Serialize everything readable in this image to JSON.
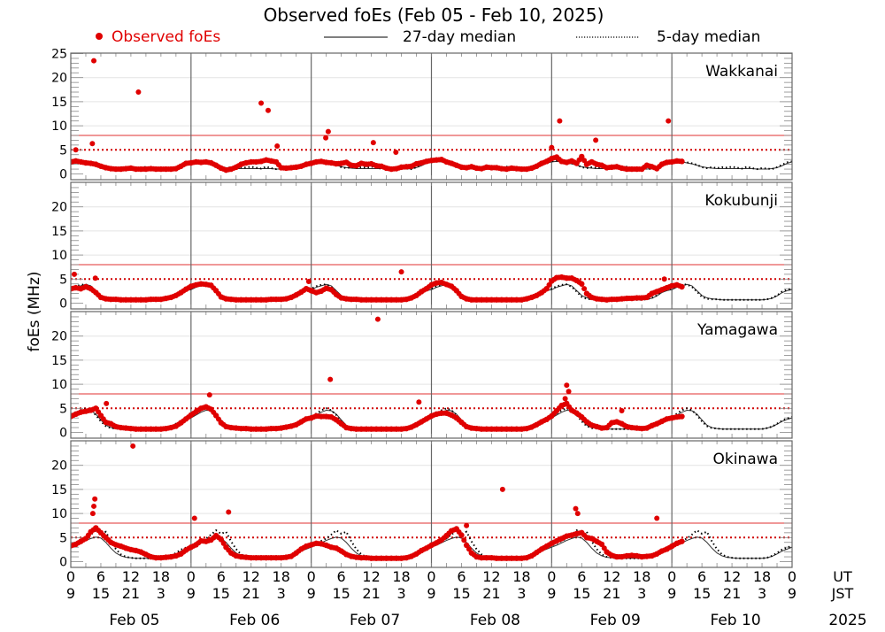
{
  "chart_data": {
    "type": "scatter",
    "title": "Observed foEs (Feb 05 - Feb 10, 2025)",
    "ylabel": "foEs (MHz)",
    "ylim": [
      0,
      25
    ],
    "yticks": [
      0,
      5,
      10,
      15,
      20,
      25
    ],
    "legend": {
      "placement": "top",
      "observed": "Observed foEs",
      "median27": "27-day median",
      "median5": "5-day median"
    },
    "reference_lines": {
      "solid_red": 8,
      "dotted_red": 5
    },
    "x_axis": {
      "ut_label": "UT",
      "jst_label": "JST",
      "ut_ticks": [
        "0",
        "6",
        "12",
        "18"
      ],
      "jst_ticks": [
        "9",
        "15",
        "21",
        "3"
      ],
      "end_ut": "0",
      "end_jst": "9",
      "days": [
        "Feb 05",
        "Feb 06",
        "Feb 07",
        "Feb 08",
        "Feb 09",
        "Feb 10"
      ],
      "year": "2025",
      "hours_per_point": 1
    },
    "colors": {
      "observed": "#e00000",
      "median27": "#333333",
      "median5": "#000000",
      "ref": "#e03030"
    },
    "stations": [
      {
        "name": "Wakkanai",
        "median27_diurnal": [
          2.5,
          2.6,
          2.5,
          2.3,
          2.1,
          1.8,
          1.5,
          1.3,
          1.2,
          1.1,
          1.1,
          1.1,
          1.1,
          1.1,
          1.1,
          1.1,
          1.1,
          1.0,
          1.0,
          1.0,
          1.1,
          1.3,
          1.7,
          2.2
        ],
        "median5_diurnal": [
          2.6,
          2.8,
          2.6,
          2.4,
          2.2,
          1.9,
          1.4,
          1.2,
          1.4,
          1.2,
          1.4,
          1.3,
          1.5,
          1.3,
          1.1,
          1.5,
          1.2,
          1.0,
          1.2,
          1.1,
          1.0,
          1.4,
          1.9,
          2.4
        ],
        "observed": [
          2.5,
          2.7,
          2.5,
          2.3,
          2.2,
          2.0,
          1.6,
          1.3,
          1.1,
          1.0,
          1.0,
          1.1,
          1.2,
          1.0,
          1.0,
          1.0,
          1.1,
          1.0,
          1.0,
          1.0,
          1.0,
          1.1,
          1.6,
          2.2,
          2.3,
          2.5,
          2.4,
          2.5,
          2.3,
          1.8,
          1.2,
          0.8,
          1.0,
          1.4,
          2.0,
          2.3,
          2.5,
          2.5,
          2.6,
          2.9,
          2.7,
          2.5,
          1.3,
          1.2,
          1.3,
          1.4,
          1.6,
          2.0,
          2.2,
          2.5,
          2.6,
          2.4,
          2.3,
          2.1,
          2.2,
          2.4,
          1.8,
          1.7,
          2.2,
          2.0,
          2.1,
          1.7,
          1.6,
          1.2,
          1.0,
          1.1,
          1.4,
          1.5,
          1.6,
          2.1,
          2.3,
          2.6,
          2.8,
          2.9,
          3.0,
          2.5,
          2.2,
          1.8,
          1.4,
          1.3,
          1.5,
          1.2,
          1.1,
          1.4,
          1.3,
          1.3,
          1.1,
          1.0,
          1.2,
          1.1,
          1.0,
          1.0,
          1.2,
          1.6,
          2.2,
          2.6,
          3.2,
          3.5,
          2.6,
          2.4,
          2.7,
          2.2,
          3.6,
          2.0,
          2.5,
          2.0,
          1.8,
          1.3,
          1.4,
          1.5,
          1.2,
          1.0,
          1.0,
          1.0,
          1.0,
          1.8,
          1.5,
          1.1,
          2.0,
          2.4,
          2.5,
          2.7,
          2.6
        ],
        "outliers": [
          [
            1,
            5.0
          ],
          [
            4.3,
            6.3
          ],
          [
            4.6,
            23.5
          ],
          [
            13.5,
            17.0
          ],
          [
            38,
            14.7
          ],
          [
            39.4,
            13.2
          ],
          [
            41.2,
            5.8
          ],
          [
            50.9,
            7.5
          ],
          [
            51.4,
            8.8
          ],
          [
            60.4,
            6.5
          ],
          [
            64.9,
            4.5
          ],
          [
            96,
            5.5
          ],
          [
            97.6,
            11.0
          ],
          [
            104.8,
            7.0
          ],
          [
            119.3,
            11.0
          ]
        ]
      },
      {
        "name": "Kokubunji",
        "median27_diurnal": [
          2.8,
          3.3,
          3.6,
          3.9,
          3.6,
          2.6,
          1.6,
          1.1,
          0.9,
          0.8,
          0.7,
          0.7,
          0.7,
          0.7,
          0.7,
          0.7,
          0.7,
          0.7,
          0.7,
          0.8,
          1.0,
          1.5,
          2.2,
          2.6
        ],
        "median5_diurnal": [
          3.0,
          3.5,
          3.8,
          3.9,
          3.4,
          2.4,
          1.3,
          0.9,
          0.8,
          0.8,
          0.7,
          0.7,
          0.7,
          0.7,
          0.7,
          0.7,
          0.7,
          0.7,
          0.7,
          0.8,
          1.1,
          1.6,
          2.4,
          2.8
        ],
        "observed": [
          3.0,
          3.2,
          3.0,
          3.4,
          3.0,
          2.2,
          1.2,
          0.9,
          0.8,
          0.8,
          0.7,
          0.7,
          0.7,
          0.7,
          0.7,
          0.7,
          0.8,
          0.8,
          0.8,
          1.0,
          1.2,
          1.6,
          2.2,
          2.9,
          3.5,
          3.8,
          4.0,
          3.9,
          3.7,
          2.6,
          1.3,
          0.9,
          0.8,
          0.7,
          0.7,
          0.7,
          0.7,
          0.7,
          0.7,
          0.7,
          0.8,
          0.8,
          0.8,
          0.9,
          1.2,
          1.7,
          2.3,
          3.0,
          2.6,
          2.2,
          2.5,
          3.1,
          2.8,
          1.8,
          1.1,
          0.9,
          0.8,
          0.8,
          0.7,
          0.7,
          0.7,
          0.7,
          0.7,
          0.7,
          0.7,
          0.7,
          0.7,
          0.8,
          1.1,
          1.6,
          2.4,
          3.0,
          3.8,
          4.2,
          4.3,
          3.9,
          3.5,
          2.6,
          1.4,
          0.9,
          0.7,
          0.7,
          0.7,
          0.7,
          0.7,
          0.7,
          0.7,
          0.7,
          0.7,
          0.7,
          0.7,
          0.9,
          1.2,
          1.6,
          2.2,
          3.0,
          4.6,
          5.3,
          5.4,
          5.2,
          5.2,
          4.7,
          4.0,
          2.0,
          1.2,
          0.9,
          0.8,
          0.7,
          0.8,
          0.8,
          0.9,
          1.0,
          1.0,
          1.1,
          1.1,
          1.2,
          2.0,
          2.4,
          2.8,
          3.2,
          3.6,
          3.8,
          3.4
        ],
        "outliers": [
          [
            0.7,
            6.0
          ],
          [
            4.9,
            5.2
          ],
          [
            47.5,
            4.5
          ],
          [
            66,
            6.5
          ],
          [
            118.5,
            5.0
          ]
        ]
      },
      {
        "name": "Yamagawa",
        "median27_diurnal": [
          3.0,
          3.6,
          4.2,
          4.6,
          4.5,
          3.8,
          2.6,
          1.5,
          1.0,
          0.8,
          0.7,
          0.7,
          0.7,
          0.7,
          0.7,
          0.7,
          0.7,
          0.7,
          0.7,
          0.9,
          1.2,
          1.7,
          2.3,
          2.7
        ],
        "median5_diurnal": [
          3.2,
          3.9,
          4.6,
          5.0,
          4.6,
          3.6,
          2.3,
          1.3,
          0.9,
          0.8,
          0.7,
          0.7,
          0.7,
          0.7,
          0.7,
          0.7,
          0.7,
          0.7,
          0.7,
          0.9,
          1.2,
          1.8,
          2.4,
          2.9
        ],
        "observed": [
          3.3,
          3.8,
          4.2,
          4.4,
          4.6,
          5.0,
          3.5,
          2.1,
          1.8,
          1.2,
          1.0,
          0.9,
          0.8,
          0.7,
          0.7,
          0.7,
          0.7,
          0.7,
          0.7,
          0.8,
          1.0,
          1.3,
          2.0,
          2.8,
          3.6,
          4.3,
          5.0,
          5.3,
          4.8,
          3.5,
          2.0,
          1.2,
          1.0,
          0.9,
          0.8,
          0.8,
          0.7,
          0.7,
          0.7,
          0.7,
          0.8,
          0.8,
          0.9,
          1.1,
          1.3,
          1.6,
          2.2,
          2.8,
          3.0,
          3.4,
          3.3,
          3.3,
          3.2,
          2.6,
          1.8,
          1.0,
          0.8,
          0.7,
          0.7,
          0.7,
          0.7,
          0.7,
          0.7,
          0.7,
          0.7,
          0.7,
          0.7,
          0.8,
          1.1,
          1.6,
          2.2,
          2.8,
          3.4,
          3.8,
          4.0,
          4.0,
          3.6,
          3.0,
          2.1,
          1.2,
          0.9,
          0.8,
          0.7,
          0.7,
          0.7,
          0.7,
          0.7,
          0.7,
          0.7,
          0.7,
          0.7,
          0.8,
          1.1,
          1.6,
          2.2,
          2.7,
          3.4,
          4.5,
          5.6,
          6.0,
          4.6,
          4.0,
          3.2,
          2.2,
          1.5,
          1.2,
          0.9,
          1.0,
          2.0,
          2.2,
          1.8,
          1.2,
          1.0,
          0.9,
          0.8,
          0.9,
          1.4,
          1.8,
          2.3,
          2.8,
          3.0,
          3.2,
          3.3
        ],
        "outliers": [
          [
            7.1,
            6.0
          ],
          [
            27.7,
            7.8
          ],
          [
            51.8,
            11.0
          ],
          [
            61.3,
            23.5
          ],
          [
            69.5,
            6.3
          ],
          [
            98.7,
            7.0
          ],
          [
            99,
            9.8
          ],
          [
            99.4,
            8.5
          ],
          [
            110,
            4.5
          ]
        ]
      },
      {
        "name": "Okinawa",
        "median27_diurnal": [
          3.0,
          3.4,
          3.9,
          4.4,
          4.8,
          5.1,
          4.9,
          4.0,
          2.8,
          1.8,
          1.2,
          0.9,
          0.8,
          0.7,
          0.7,
          0.7,
          0.7,
          0.7,
          0.7,
          0.8,
          1.1,
          1.6,
          2.2,
          2.6
        ],
        "median5_diurnal": [
          3.3,
          3.8,
          4.3,
          4.8,
          5.6,
          6.5,
          5.8,
          6.2,
          4.2,
          2.6,
          1.5,
          1.0,
          0.8,
          0.7,
          0.7,
          0.7,
          0.7,
          0.7,
          0.7,
          0.8,
          1.2,
          1.8,
          2.5,
          2.9
        ],
        "observed": [
          3.3,
          3.6,
          4.2,
          4.8,
          6.2,
          7.0,
          6.0,
          5.0,
          4.0,
          3.5,
          3.2,
          2.8,
          2.5,
          2.3,
          2.0,
          1.5,
          1.0,
          0.8,
          0.8,
          0.9,
          1.0,
          1.2,
          1.6,
          2.4,
          3.0,
          3.5,
          4.3,
          4.2,
          4.5,
          5.4,
          4.6,
          3.0,
          1.8,
          1.2,
          1.0,
          0.9,
          0.8,
          0.8,
          0.8,
          0.8,
          0.8,
          0.8,
          0.8,
          0.9,
          1.1,
          1.8,
          2.6,
          3.2,
          3.5,
          3.8,
          3.7,
          3.4,
          3.0,
          2.8,
          2.2,
          1.5,
          1.1,
          0.9,
          0.8,
          0.8,
          0.7,
          0.7,
          0.7,
          0.7,
          0.7,
          0.7,
          0.7,
          0.8,
          1.1,
          1.6,
          2.3,
          2.8,
          3.4,
          3.9,
          4.5,
          5.4,
          6.4,
          6.8,
          5.5,
          3.4,
          1.8,
          1.0,
          0.8,
          0.8,
          0.8,
          0.7,
          0.7,
          0.7,
          0.7,
          0.7,
          0.7,
          0.8,
          1.2,
          1.9,
          2.6,
          3.2,
          3.8,
          4.3,
          4.8,
          5.3,
          5.5,
          5.8,
          6.0,
          5.0,
          4.8,
          4.2,
          3.6,
          2.0,
          1.3,
          1.0,
          1.0,
          1.2,
          1.3,
          1.2,
          1.0,
          1.1,
          1.2,
          1.6,
          2.2,
          2.6,
          3.2,
          3.8,
          4.2
        ],
        "outliers": [
          [
            4.4,
            10.0
          ],
          [
            4.6,
            11.5
          ],
          [
            4.8,
            13.0
          ],
          [
            12.4,
            24.0
          ],
          [
            24.7,
            9.0
          ],
          [
            31.5,
            10.3
          ],
          [
            79,
            7.5
          ],
          [
            86.2,
            15.0
          ],
          [
            100.8,
            11.0
          ],
          [
            101.2,
            10.0
          ],
          [
            117,
            9.0
          ]
        ]
      }
    ]
  }
}
